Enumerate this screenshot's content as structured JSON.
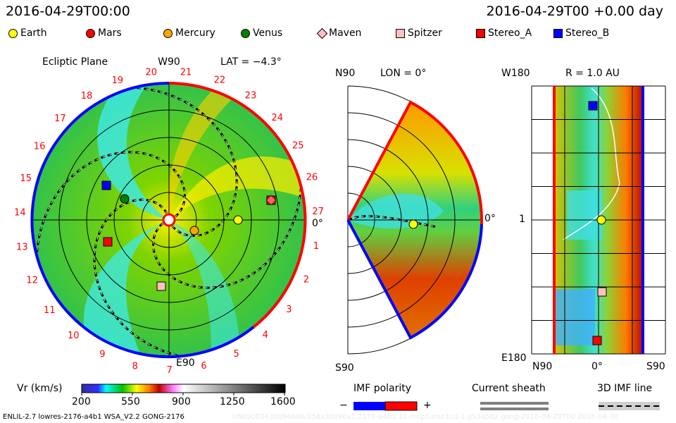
{
  "header": {
    "left_time": "2016-04-29T00:00",
    "right_time": "2016-04-29T00 +0.00 day"
  },
  "legend": [
    {
      "label": "Earth",
      "shape": "circle",
      "color": "#ffff00"
    },
    {
      "label": "Mars",
      "shape": "circle",
      "color": "#ff0000"
    },
    {
      "label": "Mercury",
      "shape": "circle",
      "color": "#ffa500"
    },
    {
      "label": "Venus",
      "shape": "circle",
      "color": "#008000"
    },
    {
      "label": "Maven",
      "shape": "diamond",
      "color": "#ffc0c0"
    },
    {
      "label": "Spitzer",
      "shape": "square",
      "color": "#ffc0c0"
    },
    {
      "label": "Stereo_A",
      "shape": "square",
      "color": "#ff0000"
    },
    {
      "label": "Stereo_B",
      "shape": "square",
      "color": "#0000ff"
    }
  ],
  "ecliptic": {
    "title": "Ecliptic Plane",
    "top": "W90",
    "bottom": "E90",
    "right": "0°",
    "lat": "LAT = −4.3°",
    "day_labels": [
      "19",
      "20",
      "21",
      "22",
      "23",
      "24",
      "25",
      "26",
      "27",
      "1",
      "2",
      "3",
      "4",
      "5",
      "6",
      "7",
      "8",
      "9",
      "10",
      "11",
      "12",
      "13",
      "14",
      "15",
      "16",
      "17",
      "18"
    ]
  },
  "meridional": {
    "top": "N90",
    "bottom": "S90",
    "lon": "LON = 0°",
    "right": "0°"
  },
  "radial": {
    "top_left": "W180",
    "title": "R = 1.0 AU",
    "mid": "1",
    "bottom_left": "E180",
    "x_labels": [
      "N90",
      "0°",
      "S90"
    ]
  },
  "colorbar": {
    "label": "Vr (km/s)",
    "ticks": [
      "200",
      "550",
      "900",
      "1250",
      "1600"
    ]
  },
  "imf": {
    "title": "IMF polarity",
    "minus": "−",
    "plus": "+",
    "neg_color": "#0000ff",
    "pos_color": "#ff0000"
  },
  "sheath": {
    "title": "Current sheath"
  },
  "imf_line": {
    "title": "3D IMF line"
  },
  "footer": {
    "left": "ENLIL-2.7 lowres-2176-a4b1 WSA_V2.2 GONG-2176",
    "right": "UNIQUE0430094606/256x30x90x1.2176-a4b1.32-mcp1umn1cd-1.g53q5d2.gong-2016-04-29T00   2016-04-30"
  },
  "chart_data": {
    "type": "heatmap",
    "title": "Vr (km/s)",
    "colorbar_range": [
      200,
      1600
    ],
    "colorbar_ticks": [
      200,
      550,
      900,
      1250,
      1600
    ],
    "bodies_in_ecliptic": [
      "Earth",
      "Mars",
      "Mercury",
      "Venus",
      "Maven",
      "Spitzer",
      "Stereo_A",
      "Stereo_B"
    ]
  }
}
